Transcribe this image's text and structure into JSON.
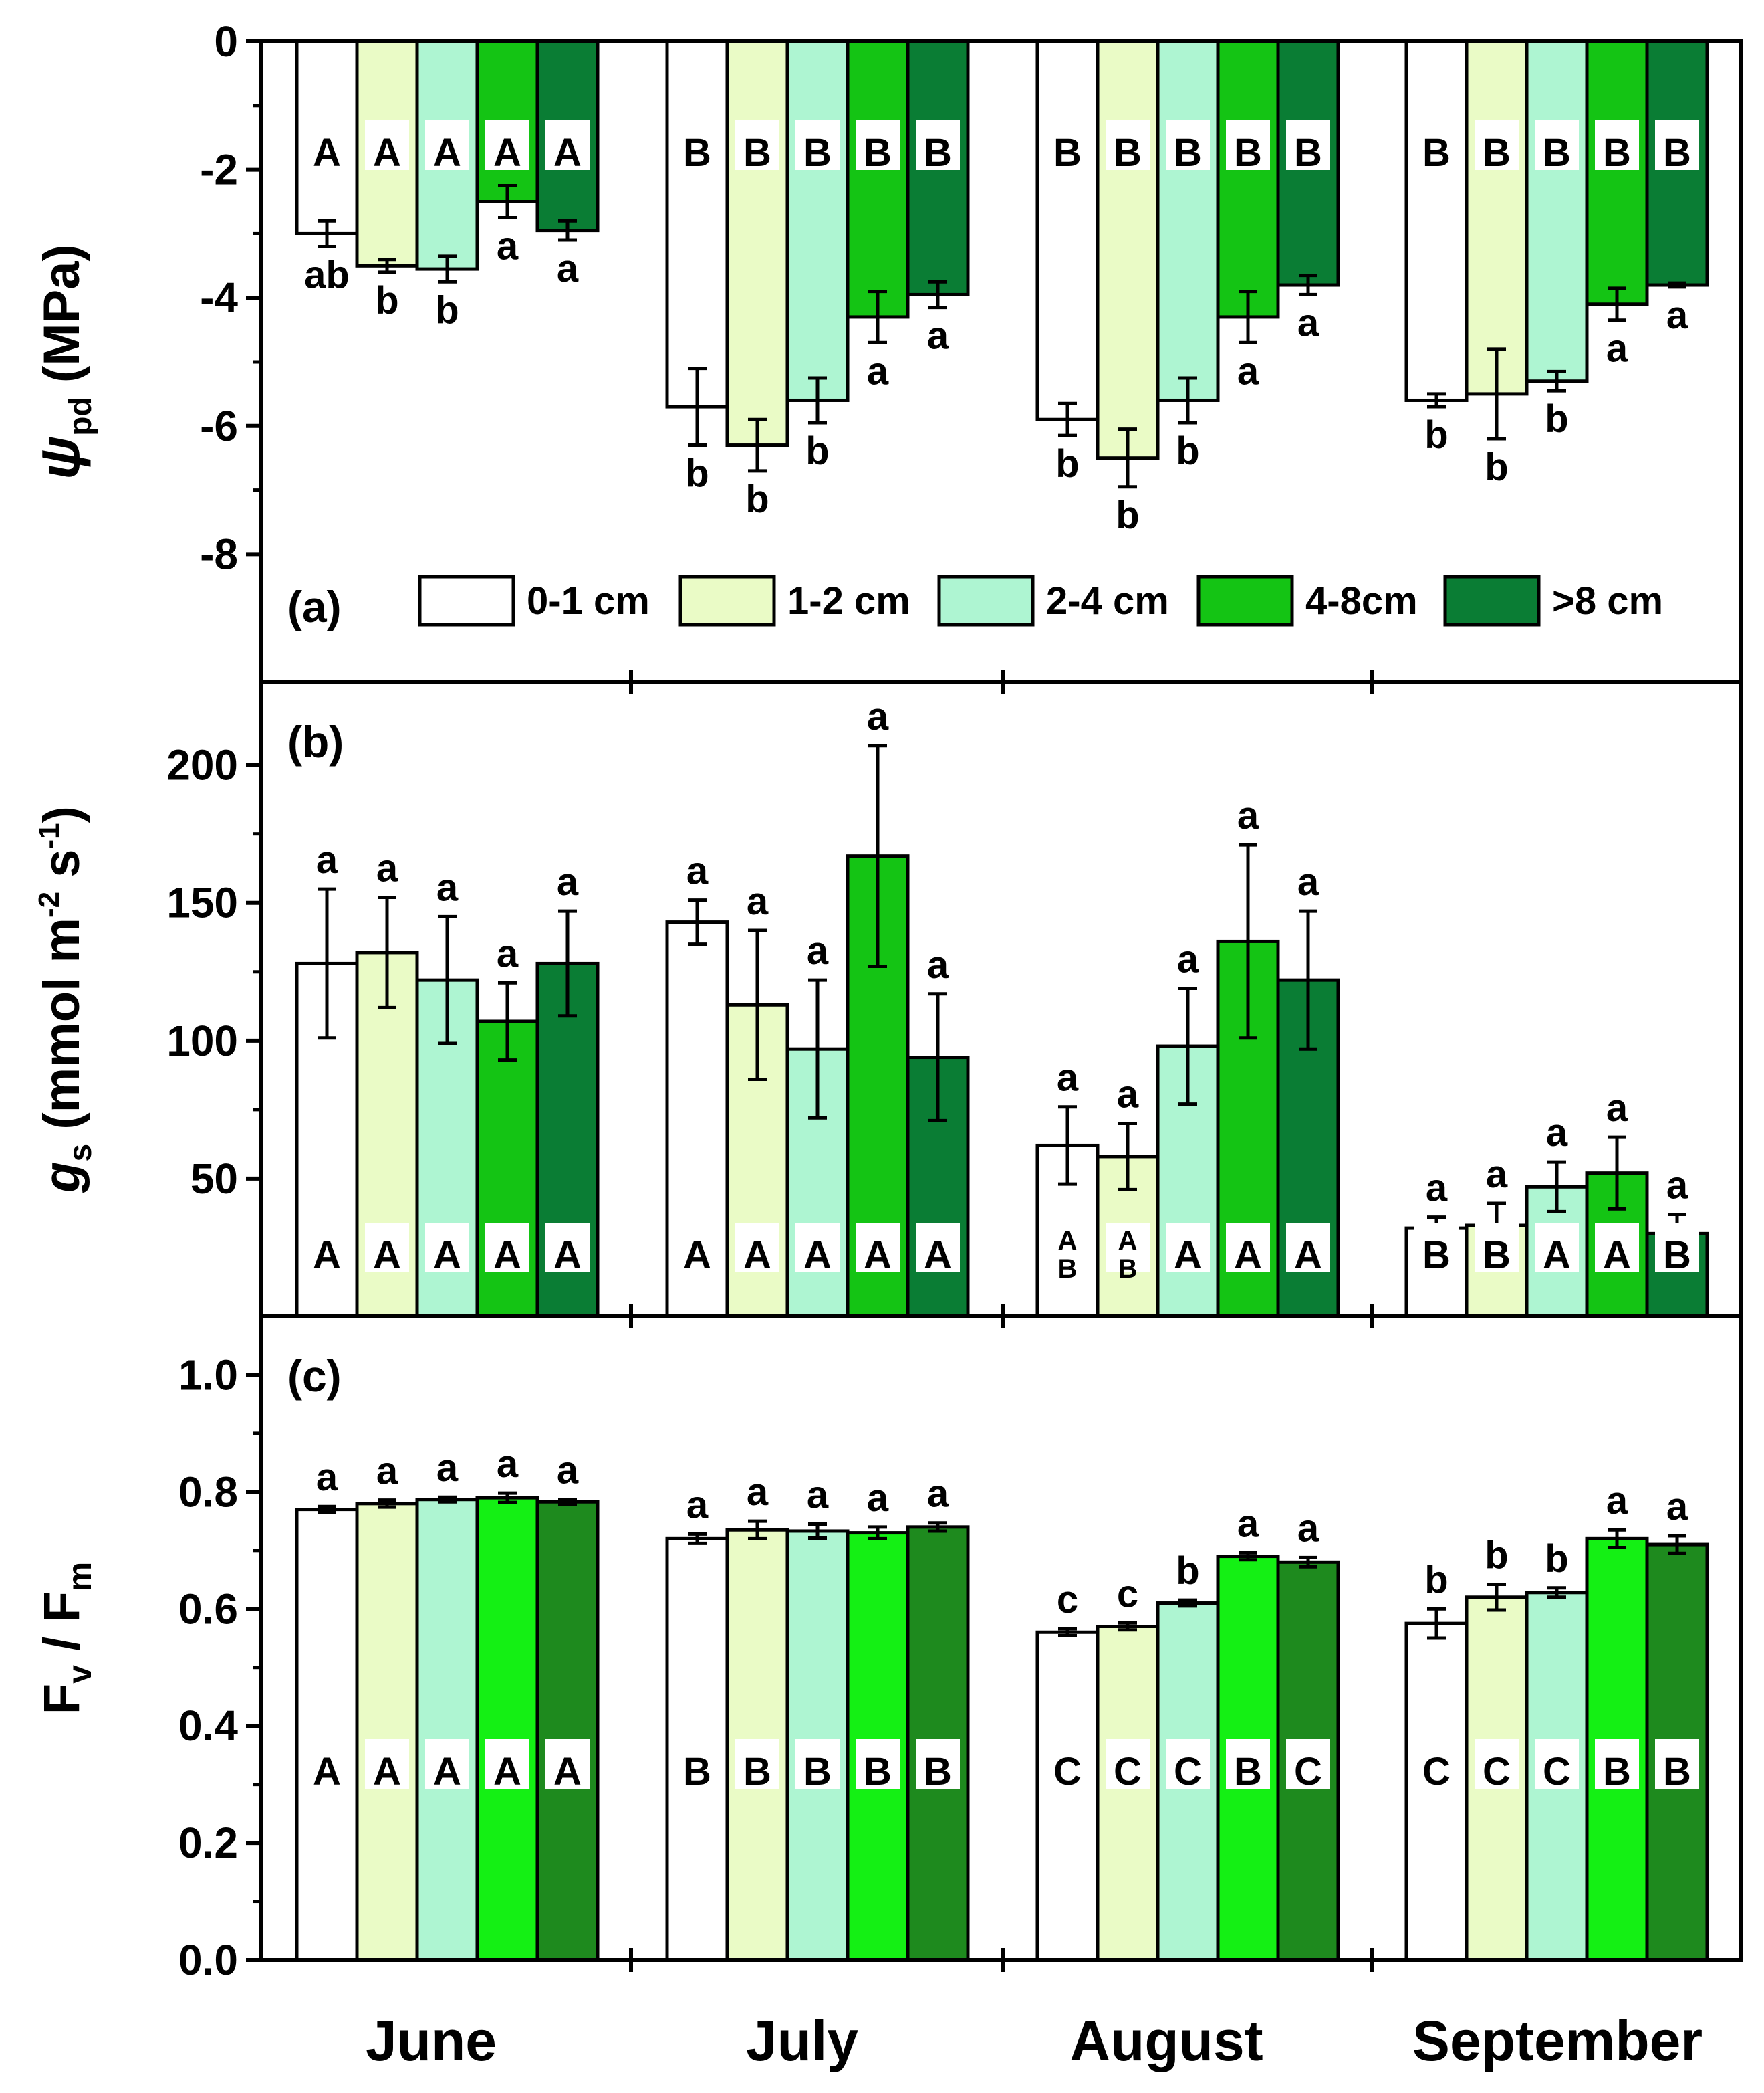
{
  "colors": {
    "0-1 cm": "#ffffff",
    "1-2 cm": "#eafbc6",
    "2-4 cm": "#aef5d2",
    "4-8cm": "#14c414",
    ">8 cm": "#0a7d34",
    "panel_c_4-8cm": "#14f014",
    "panel_c_>8 cm": "#1e8a1e",
    "axis": "#000000",
    "letter_box": "#ffffff"
  },
  "chart_data": {
    "type": "bar",
    "categories": [
      "June",
      "July",
      "August",
      "September"
    ],
    "series_names": [
      "0-1 cm",
      "1-2 cm",
      "2-4 cm",
      "4-8cm",
      ">8 cm"
    ],
    "legend": {
      "labels": [
        "0-1 cm",
        "1-2 cm",
        "2-4 cm",
        "4-8cm",
        ">8 cm"
      ],
      "placement": "bottom of panel (a)"
    },
    "panels": [
      {
        "id": "a",
        "label": "(a)",
        "ylabel_symbol": "ψ",
        "ylabel_sub": "pd",
        "ylabel_unit": "(MPa)",
        "ylim": [
          -10,
          0
        ],
        "yticks": [
          0,
          -2,
          -4,
          -6,
          -8
        ],
        "ytick_labels": [
          "0",
          "-2",
          "-4",
          "-6",
          "-8"
        ],
        "series": [
          {
            "name": "0-1 cm",
            "values": [
              -3.0,
              -5.7,
              -5.9,
              -5.6
            ],
            "errors": [
              0.2,
              0.6,
              0.25,
              0.1
            ]
          },
          {
            "name": "1-2 cm",
            "values": [
              -3.5,
              -6.3,
              -6.5,
              -5.5
            ],
            "errors": [
              0.1,
              0.4,
              0.45,
              0.7
            ]
          },
          {
            "name": "2-4 cm",
            "values": [
              -3.55,
              -5.6,
              -5.6,
              -5.3
            ],
            "errors": [
              0.2,
              0.35,
              0.35,
              0.15
            ]
          },
          {
            "name": "4-8cm",
            "values": [
              -2.5,
              -4.3,
              -4.3,
              -4.1
            ],
            "errors": [
              0.25,
              0.4,
              0.4,
              0.25
            ]
          },
          {
            "name": ">8 cm",
            "values": [
              -2.95,
              -3.95,
              -3.8,
              -3.8
            ],
            "errors": [
              0.15,
              0.2,
              0.15,
              0.03
            ]
          }
        ],
        "point_letters": [
          [
            "ab",
            "b",
            "b",
            "a",
            "a"
          ],
          [
            "b",
            "b",
            "b",
            "a",
            "a"
          ],
          [
            "b",
            "b",
            "b",
            "a",
            "a"
          ],
          [
            "b",
            "b",
            "b",
            "a",
            "a"
          ]
        ],
        "month_letters": [
          [
            "A",
            "A",
            "A",
            "A",
            "A"
          ],
          [
            "B",
            "B",
            "B",
            "B",
            "B"
          ],
          [
            "B",
            "B",
            "B",
            "B",
            "B"
          ],
          [
            "B",
            "B",
            "B",
            "B",
            "B"
          ]
        ]
      },
      {
        "id": "b",
        "label": "(b)",
        "ylabel_symbol": "g",
        "ylabel_sub": "s",
        "ylabel_unit": "(mmol m",
        "ylabel_sup1": "-2",
        "ylabel_mid": " s",
        "ylabel_sup2": "-1",
        "ylabel_end": ")",
        "ylim": [
          0,
          230
        ],
        "yticks": [
          50,
          100,
          150,
          200
        ],
        "ytick_labels": [
          "50",
          "100",
          "150",
          "200"
        ],
        "series": [
          {
            "name": "0-1 cm",
            "values": [
              128,
              143,
              62,
              32
            ],
            "errors": [
              27,
              8,
              14,
              4
            ]
          },
          {
            "name": "1-2 cm",
            "values": [
              132,
              113,
              58,
              33
            ],
            "errors": [
              20,
              27,
              12,
              8
            ]
          },
          {
            "name": "2-4 cm",
            "values": [
              122,
              97,
              98,
              47
            ],
            "errors": [
              23,
              25,
              21,
              9
            ]
          },
          {
            "name": "4-8cm",
            "values": [
              107,
              167,
              136,
              52
            ],
            "errors": [
              14,
              40,
              35,
              13
            ]
          },
          {
            "name": ">8 cm",
            "values": [
              128,
              94,
              122,
              30
            ],
            "errors": [
              19,
              23,
              25,
              7
            ]
          }
        ],
        "point_letters": [
          [
            "a",
            "a",
            "a",
            "a",
            "a"
          ],
          [
            "a",
            "a",
            "a",
            "a",
            "a"
          ],
          [
            "a",
            "a",
            "a",
            "a",
            "a"
          ],
          [
            "a",
            "a",
            "a",
            "a",
            "a"
          ]
        ],
        "month_letters": [
          [
            "A",
            "A",
            "A",
            "A",
            "A"
          ],
          [
            "A",
            "A",
            "A",
            "A",
            "A"
          ],
          [
            "AB",
            "AB",
            "A",
            "A",
            "A"
          ],
          [
            "B",
            "B",
            "A",
            "A",
            "B"
          ]
        ]
      },
      {
        "id": "c",
        "label": "(c)",
        "ylabel_f1": "F",
        "ylabel_s1": "v",
        "ylabel_slash": " / F",
        "ylabel_s2": "m",
        "ylim": [
          0,
          1.1
        ],
        "yticks": [
          0.0,
          0.2,
          0.4,
          0.6,
          0.8,
          1.0
        ],
        "ytick_labels": [
          "0.0",
          "0.2",
          "0.4",
          "0.6",
          "0.8",
          "1.0"
        ],
        "series": [
          {
            "name": "0-1 cm",
            "values": [
              0.77,
              0.72,
              0.56,
              0.575
            ],
            "errors": [
              0.005,
              0.008,
              0.006,
              0.025
            ]
          },
          {
            "name": "1-2 cm",
            "values": [
              0.78,
              0.735,
              0.57,
              0.62
            ],
            "errors": [
              0.006,
              0.015,
              0.006,
              0.022
            ]
          },
          {
            "name": "2-4 cm",
            "values": [
              0.787,
              0.733,
              0.61,
              0.628
            ],
            "errors": [
              0.004,
              0.012,
              0.005,
              0.008
            ]
          },
          {
            "name": "4-8cm",
            "values": [
              0.79,
              0.73,
              0.69,
              0.72
            ],
            "errors": [
              0.008,
              0.01,
              0.006,
              0.015
            ]
          },
          {
            "name": ">8 cm",
            "values": [
              0.783,
              0.74,
              0.68,
              0.71
            ],
            "errors": [
              0.004,
              0.007,
              0.008,
              0.015
            ]
          }
        ],
        "point_letters": [
          [
            "a",
            "a",
            "a",
            "a",
            "a"
          ],
          [
            "a",
            "a",
            "a",
            "a",
            "a"
          ],
          [
            "c",
            "c",
            "b",
            "a",
            "a"
          ],
          [
            "b",
            "b",
            "b",
            "a",
            "a"
          ]
        ],
        "month_letters": [
          [
            "A",
            "A",
            "A",
            "A",
            "A"
          ],
          [
            "B",
            "B",
            "B",
            "B",
            "B"
          ],
          [
            "C",
            "C",
            "C",
            "B",
            "C"
          ],
          [
            "C",
            "C",
            "C",
            "B",
            "B"
          ]
        ]
      }
    ]
  }
}
